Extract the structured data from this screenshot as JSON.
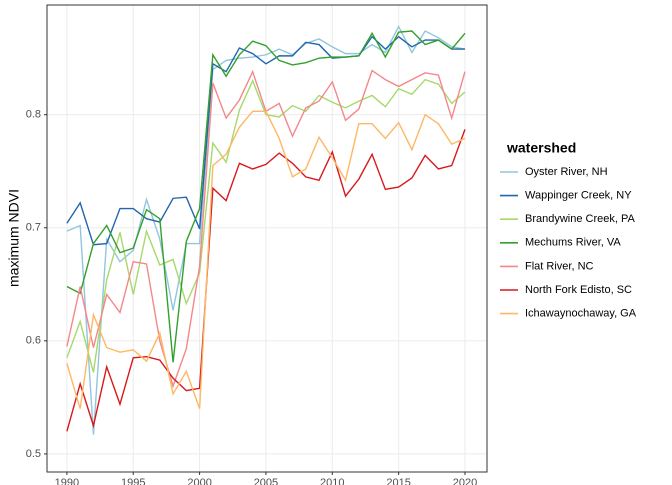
{
  "chart_data": {
    "type": "line",
    "y_label": "maximum NDVI",
    "legend_title": "watershed",
    "legend": "right",
    "grid": true,
    "x": [
      1990,
      1991,
      1992,
      1993,
      1994,
      1995,
      1996,
      1997,
      1998,
      1999,
      2000,
      2001,
      2002,
      2003,
      2004,
      2005,
      2006,
      2007,
      2008,
      2009,
      2010,
      2011,
      2012,
      2013,
      2014,
      2015,
      2016,
      2017,
      2018,
      2019,
      2020
    ],
    "xlim": [
      1988.5,
      2021.66
    ],
    "xticks": [
      1990,
      1995,
      2000,
      2005,
      2010,
      2015,
      2020
    ],
    "ylim": [
      0.484,
      0.897
    ],
    "yticks": [
      0.5,
      0.6,
      0.7,
      0.8
    ],
    "series": [
      {
        "name": "Oyster River, NH",
        "color": "#92c5de",
        "values": [
          0.697,
          0.702,
          0.517,
          0.69,
          0.67,
          0.68,
          0.725,
          0.69,
          0.627,
          0.686,
          0.686,
          0.84,
          0.848,
          0.85,
          0.851,
          0.853,
          0.858,
          0.853,
          0.863,
          0.867,
          0.86,
          0.854,
          0.854,
          0.862,
          0.855,
          0.878,
          0.855,
          0.874,
          0.868,
          0.86,
          0.858
        ]
      },
      {
        "name": "Wappinger Creek, NY",
        "color": "#2166ac",
        "values": [
          0.704,
          0.722,
          0.685,
          0.686,
          0.717,
          0.717,
          0.708,
          0.705,
          0.726,
          0.727,
          0.699,
          0.845,
          0.838,
          0.859,
          0.854,
          0.845,
          0.852,
          0.852,
          0.864,
          0.862,
          0.85,
          0.851,
          0.852,
          0.869,
          0.858,
          0.869,
          0.86,
          0.866,
          0.866,
          0.858,
          0.858
        ]
      },
      {
        "name": "Brandywine Creek, PA",
        "color": "#a6d96a",
        "values": [
          0.585,
          0.617,
          0.572,
          0.654,
          0.696,
          0.641,
          0.697,
          0.667,
          0.672,
          0.633,
          0.66,
          0.775,
          0.758,
          0.804,
          0.83,
          0.8,
          0.798,
          0.808,
          0.803,
          0.817,
          0.811,
          0.806,
          0.812,
          0.817,
          0.807,
          0.823,
          0.818,
          0.831,
          0.827,
          0.81,
          0.82
        ]
      },
      {
        "name": "Mechums River, VA",
        "color": "#33a02c",
        "values": [
          0.648,
          0.642,
          0.686,
          0.702,
          0.678,
          0.682,
          0.716,
          0.708,
          0.581,
          0.688,
          0.717,
          0.853,
          0.834,
          0.853,
          0.865,
          0.861,
          0.848,
          0.844,
          0.846,
          0.85,
          0.851,
          0.851,
          0.852,
          0.872,
          0.851,
          0.873,
          0.874,
          0.862,
          0.866,
          0.858,
          0.872
        ]
      },
      {
        "name": "Flat River, NC",
        "color": "#f4878a",
        "values": [
          0.595,
          0.648,
          0.594,
          0.641,
          0.625,
          0.67,
          0.668,
          0.6,
          0.56,
          0.593,
          0.666,
          0.828,
          0.797,
          0.813,
          0.838,
          0.803,
          0.81,
          0.781,
          0.806,
          0.812,
          0.829,
          0.795,
          0.805,
          0.839,
          0.831,
          0.825,
          0.831,
          0.837,
          0.835,
          0.797,
          0.838
        ]
      },
      {
        "name": "North Fork Edisto, SC",
        "color": "#d7191c",
        "values": [
          0.52,
          0.562,
          0.525,
          0.577,
          0.544,
          0.585,
          0.586,
          0.583,
          0.567,
          0.556,
          0.558,
          0.735,
          0.724,
          0.757,
          0.752,
          0.756,
          0.766,
          0.757,
          0.745,
          0.742,
          0.767,
          0.728,
          0.743,
          0.765,
          0.734,
          0.736,
          0.744,
          0.764,
          0.752,
          0.755,
          0.787
        ]
      },
      {
        "name": "Ichawaynochaway, GA",
        "color": "#fdb863",
        "values": [
          0.58,
          0.54,
          0.623,
          0.594,
          0.59,
          0.592,
          0.582,
          0.607,
          0.553,
          0.573,
          0.54,
          0.755,
          0.765,
          0.789,
          0.803,
          0.803,
          0.779,
          0.745,
          0.752,
          0.78,
          0.762,
          0.742,
          0.792,
          0.792,
          0.779,
          0.793,
          0.769,
          0.8,
          0.792,
          0.774,
          0.779
        ]
      }
    ]
  }
}
